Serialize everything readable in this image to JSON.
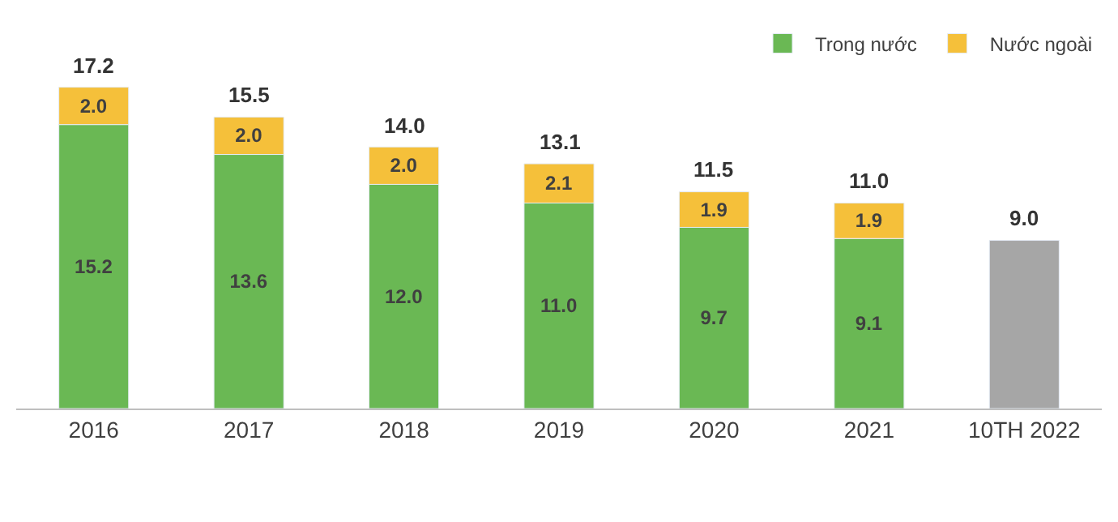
{
  "chart_data": {
    "type": "bar",
    "stacked": true,
    "legend": "top right",
    "categories": [
      "2016",
      "2017",
      "2018",
      "2019",
      "2020",
      "2021",
      "10TH 2022"
    ],
    "series": [
      {
        "name": "Trong nước",
        "color": "#6ab854",
        "colors": [
          "#6ab854",
          "#6ab854",
          "#6ab854",
          "#6ab854",
          "#6ab854",
          "#6ab854",
          "#a6a6a6"
        ],
        "values": [
          15.2,
          13.6,
          12.0,
          11.0,
          9.7,
          9.1,
          9.0
        ],
        "value_labels": [
          "15.2",
          "13.6",
          "12.0",
          "11.0",
          "9.7",
          "9.1",
          null
        ]
      },
      {
        "name": "Nước ngoài",
        "color": "#f5c03a",
        "values": [
          2.0,
          2.0,
          2.0,
          2.1,
          1.9,
          1.9,
          null
        ],
        "value_labels": [
          "2.0",
          "2.0",
          "2.0",
          "2.1",
          "1.9",
          "1.9",
          null
        ]
      }
    ],
    "totals": [
      "17.2",
      "15.5",
      "14.0",
      "13.1",
      "11.5",
      "11.0",
      "9.0"
    ]
  }
}
